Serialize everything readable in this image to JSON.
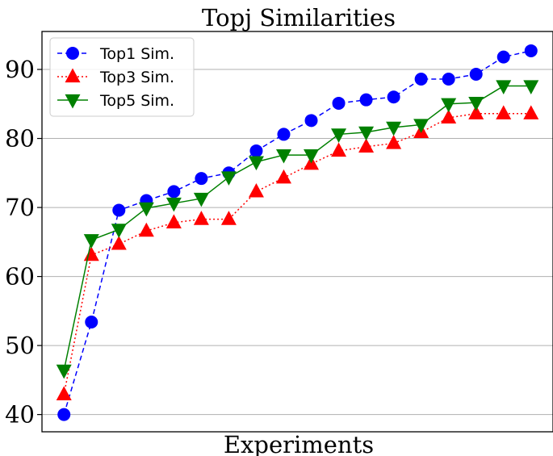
{
  "chart_data": {
    "type": "line",
    "title": "Topj Similarities",
    "xlabel": "Experiments",
    "ylabel": "",
    "x": [
      1,
      2,
      3,
      4,
      5,
      6,
      7,
      8,
      9,
      10,
      11,
      12,
      13,
      14,
      15,
      16,
      17,
      18
    ],
    "xlim": [
      0.2,
      18.8
    ],
    "ylim": [
      37.5,
      95.5
    ],
    "yticks": [
      40,
      50,
      60,
      70,
      80,
      90
    ],
    "grid": "horizontal",
    "legend_position": "top-left",
    "series": [
      {
        "name": "Top1 Sim.",
        "color": "#0000ff",
        "marker": "circle",
        "linestyle": "dashed",
        "values": [
          40.0,
          53.4,
          69.6,
          71.0,
          72.3,
          74.2,
          75.0,
          78.2,
          80.6,
          82.6,
          85.1,
          85.6,
          86.0,
          88.6,
          88.6,
          89.3,
          91.8,
          92.7
        ]
      },
      {
        "name": "Top3 Sim.",
        "color": "#ff0000",
        "marker": "triangle-up",
        "linestyle": "dotted",
        "values": [
          42.9,
          63.1,
          64.7,
          66.6,
          67.8,
          68.3,
          68.3,
          72.3,
          74.3,
          76.3,
          78.2,
          78.8,
          79.3,
          80.9,
          83.0,
          83.6,
          83.6,
          83.6
        ]
      },
      {
        "name": "Top5 Sim.",
        "color": "#008000",
        "marker": "triangle-down",
        "linestyle": "solid",
        "values": [
          46.4,
          65.3,
          66.8,
          69.9,
          70.6,
          71.3,
          74.4,
          76.6,
          77.6,
          77.6,
          80.6,
          80.9,
          81.6,
          82.0,
          85.0,
          85.2,
          87.6,
          87.6
        ]
      }
    ]
  }
}
